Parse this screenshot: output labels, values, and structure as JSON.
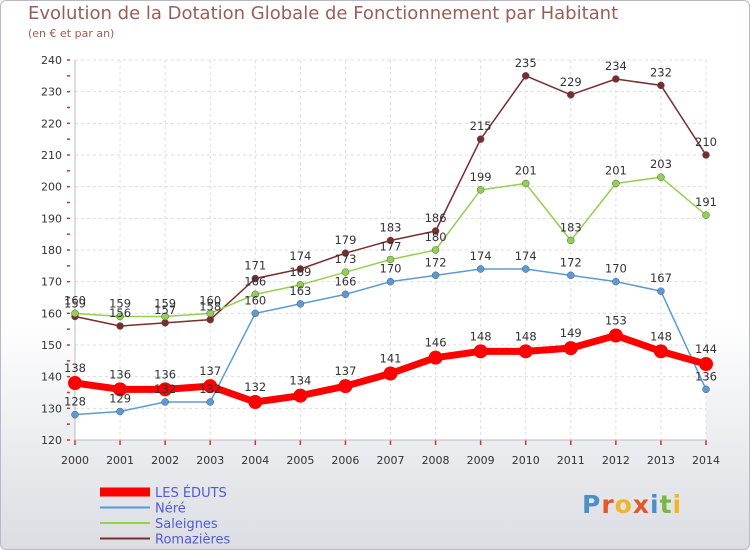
{
  "chart_data": {
    "type": "line",
    "title": "Evolution de la Dotation Globale de Fonctionnement par Habitant",
    "subtitle": "(en € et par an)",
    "xlabel": "",
    "ylabel": "",
    "x": [
      "2000",
      "2001",
      "2002",
      "2003",
      "2004",
      "2005",
      "2006",
      "2007",
      "2008",
      "2009",
      "2010",
      "2011",
      "2012",
      "2013",
      "2014"
    ],
    "ylim": [
      120,
      240
    ],
    "yticks": [
      120,
      130,
      140,
      150,
      160,
      170,
      180,
      190,
      200,
      210,
      220,
      230,
      240
    ],
    "grid": true,
    "legend_position": "bottom-left",
    "series": [
      {
        "name": "LES ÉDUTS",
        "color": "#ff0000",
        "values": [
          138,
          136,
          136,
          137,
          132,
          134,
          137,
          141,
          146,
          148,
          148,
          149,
          153,
          148,
          144
        ]
      },
      {
        "name": "Néré",
        "color": "#5b9bd5",
        "values": [
          128,
          129,
          132,
          132,
          160,
          163,
          166,
          170,
          172,
          174,
          174,
          172,
          170,
          167,
          136
        ]
      },
      {
        "name": "Saleignes",
        "color": "#92d050",
        "values": [
          160,
          159,
          159,
          160,
          166,
          169,
          173,
          177,
          180,
          199,
          201,
          183,
          201,
          203,
          191
        ]
      },
      {
        "name": "Romazières",
        "color": "#7b2c2c",
        "values": [
          159,
          156,
          157,
          158,
          171,
          174,
          179,
          183,
          186,
          215,
          235,
          229,
          234,
          232,
          210
        ]
      }
    ]
  },
  "logo": {
    "letters": [
      "P",
      "r",
      "o",
      "x",
      "i",
      "t",
      "i"
    ],
    "colors": [
      "#4f8fc9",
      "#e2582b",
      "#f0b62a",
      "#e2582b",
      "#4f8fc9",
      "#78b83f",
      "#f0b62a"
    ]
  }
}
